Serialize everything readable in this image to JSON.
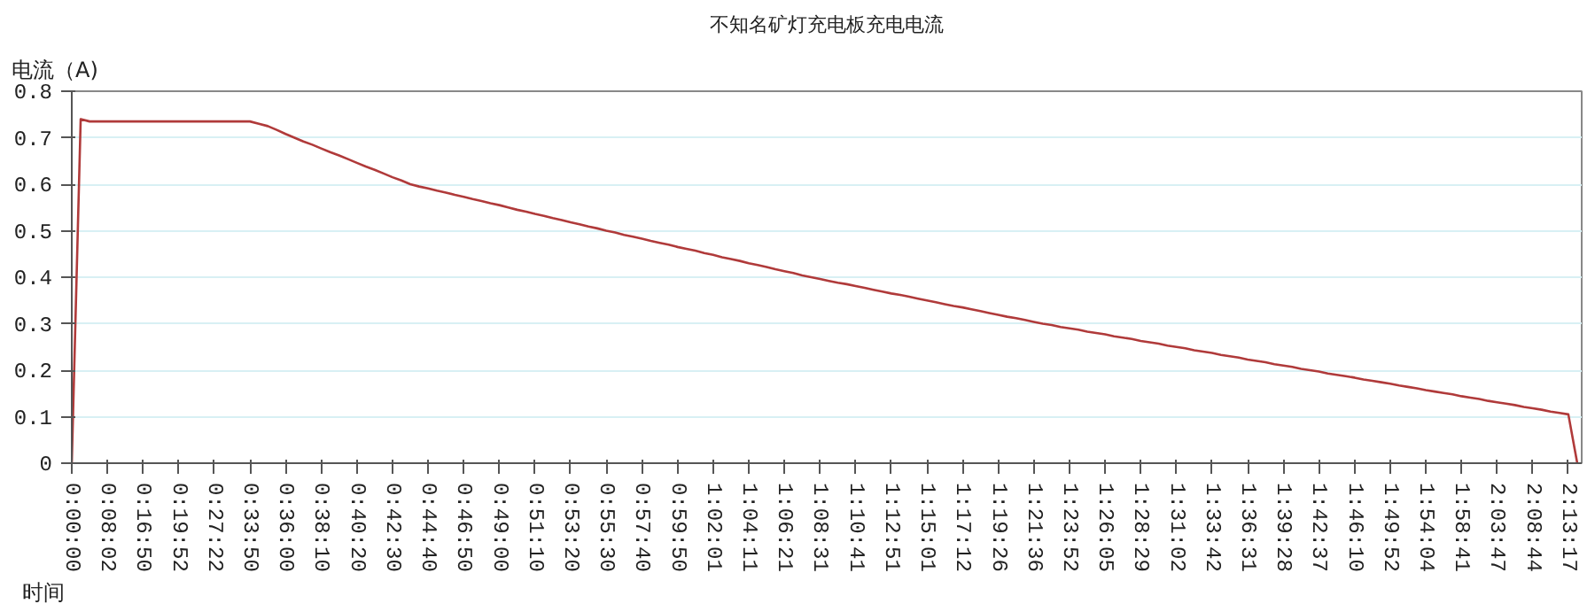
{
  "chart_data": {
    "type": "line",
    "title": "不知名矿灯充电板充电电流",
    "xlabel": "时间",
    "ylabel": "电流（A)",
    "categories": [
      "0:00:00",
      null,
      null,
      null,
      "0:08:02",
      null,
      null,
      null,
      "0:16:50",
      null,
      null,
      null,
      "0:19:52",
      null,
      null,
      null,
      "0:27:22",
      null,
      null,
      null,
      "0:33:50",
      null,
      null,
      null,
      "0:36:00",
      null,
      null,
      null,
      "0:38:10",
      null,
      null,
      null,
      "0:40:20",
      null,
      null,
      null,
      "0:42:30",
      null,
      null,
      null,
      "0:44:40",
      null,
      null,
      null,
      "0:46:50",
      null,
      null,
      null,
      "0:49:00",
      null,
      null,
      null,
      "0:51:10",
      null,
      null,
      null,
      "0:53:20",
      null,
      null,
      null,
      "0:55:30",
      null,
      null,
      null,
      "0:57:40",
      null,
      null,
      null,
      "0:59:50",
      null,
      null,
      null,
      "1:02:01",
      null,
      null,
      null,
      "1:04:11",
      null,
      null,
      null,
      "1:06:21",
      null,
      null,
      null,
      "1:08:31",
      null,
      null,
      null,
      "1:10:41",
      null,
      null,
      null,
      "1:12:51",
      null,
      null,
      null,
      "1:15:01",
      null,
      null,
      null,
      "1:17:12",
      null,
      null,
      null,
      "1:19:26",
      null,
      null,
      null,
      "1:21:36",
      null,
      null,
      null,
      "1:23:52",
      null,
      null,
      null,
      "1:26:05",
      null,
      null,
      null,
      "1:28:29",
      null,
      null,
      null,
      "1:31:02",
      null,
      null,
      null,
      "1:33:42",
      null,
      null,
      null,
      "1:36:31",
      null,
      null,
      null,
      "1:39:28",
      null,
      null,
      null,
      "1:42:37",
      null,
      null,
      null,
      "1:46:10",
      null,
      null,
      null,
      "1:49:52",
      null,
      null,
      null,
      "1:54:04",
      null,
      null,
      null,
      "1:58:41",
      null,
      null,
      null,
      "2:03:47",
      null,
      null,
      null,
      "2:08:44",
      null,
      null,
      null,
      "2:13:17",
      null
    ],
    "series": [
      {
        "color": "#b03a3a",
        "values": [
          0,
          0.74,
          0.735,
          0.735,
          0.735,
          0.735,
          0.735,
          0.735,
          0.735,
          0.735,
          0.735,
          0.735,
          0.735,
          0.735,
          0.735,
          0.735,
          0.735,
          0.735,
          0.735,
          0.735,
          0.735,
          0.73,
          0.725,
          0.717,
          0.708,
          0.7,
          0.692,
          0.685,
          0.677,
          0.669,
          0.662,
          0.654,
          0.646,
          0.638,
          0.631,
          0.623,
          0.615,
          0.608,
          0.6,
          0.595,
          0.591,
          0.586,
          0.582,
          0.577,
          0.573,
          0.568,
          0.564,
          0.559,
          0.555,
          0.55,
          0.545,
          0.541,
          0.536,
          0.532,
          0.527,
          0.523,
          0.518,
          0.514,
          0.509,
          0.505,
          0.5,
          0.496,
          0.491,
          0.487,
          0.483,
          0.478,
          0.474,
          0.47,
          0.465,
          0.461,
          0.457,
          0.452,
          0.448,
          0.443,
          0.439,
          0.435,
          0.43,
          0.426,
          0.422,
          0.417,
          0.413,
          0.409,
          0.404,
          0.4,
          0.396,
          0.392,
          0.388,
          0.385,
          0.381,
          0.377,
          0.373,
          0.369,
          0.365,
          0.362,
          0.358,
          0.354,
          0.35,
          0.346,
          0.342,
          0.338,
          0.335,
          0.331,
          0.327,
          0.323,
          0.319,
          0.315,
          0.312,
          0.308,
          0.304,
          0.3,
          0.297,
          0.293,
          0.29,
          0.287,
          0.283,
          0.28,
          0.277,
          0.273,
          0.27,
          0.267,
          0.263,
          0.26,
          0.257,
          0.253,
          0.25,
          0.247,
          0.243,
          0.24,
          0.237,
          0.233,
          0.23,
          0.227,
          0.223,
          0.22,
          0.217,
          0.213,
          0.21,
          0.207,
          0.203,
          0.2,
          0.197,
          0.193,
          0.19,
          0.187,
          0.184,
          0.18,
          0.177,
          0.174,
          0.171,
          0.167,
          0.164,
          0.161,
          0.157,
          0.154,
          0.151,
          0.148,
          0.144,
          0.141,
          0.138,
          0.134,
          0.131,
          0.128,
          0.125,
          0.121,
          0.118,
          0.115,
          0.111,
          0.108,
          0.105,
          0
        ]
      }
    ],
    "ylim": [
      0,
      0.8
    ],
    "yticks": [
      0,
      0.1,
      0.2,
      0.3,
      0.4,
      0.5,
      0.6,
      0.7,
      0.8
    ],
    "grid": "y",
    "marker": "none",
    "line_style": "solid"
  }
}
